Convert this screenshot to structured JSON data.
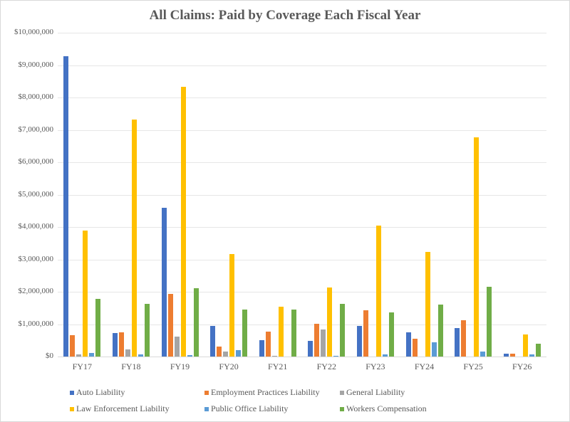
{
  "chart_data": {
    "type": "bar",
    "title": "All Claims: Paid by Coverage Each Fiscal Year",
    "xlabel": "",
    "ylabel": "",
    "ylim": [
      0,
      10000000
    ],
    "yticks": [
      0,
      1000000,
      2000000,
      3000000,
      4000000,
      5000000,
      6000000,
      7000000,
      8000000,
      9000000,
      10000000
    ],
    "ytick_labels": [
      "$0",
      "$1,000,000",
      "$2,000,000",
      "$3,000,000",
      "$4,000,000",
      "$5,000,000",
      "$6,000,000",
      "$7,000,000",
      "$8,000,000",
      "$9,000,000",
      "$10,000,000"
    ],
    "grid": true,
    "legend_position": "bottom",
    "categories": [
      "FY17",
      "FY18",
      "FY19",
      "FY20",
      "FY21",
      "FY22",
      "FY23",
      "FY24",
      "FY25",
      "FY26"
    ],
    "series": [
      {
        "name": "Auto Liability",
        "color": "#4472c4",
        "values": [
          9280000,
          720000,
          4600000,
          940000,
          510000,
          490000,
          950000,
          740000,
          890000,
          80000
        ]
      },
      {
        "name": "Employment Practices Liability",
        "color": "#ed7d31",
        "values": [
          650000,
          750000,
          1930000,
          300000,
          780000,
          1010000,
          1420000,
          560000,
          1120000,
          80000
        ]
      },
      {
        "name": "General Liability",
        "color": "#a5a5a5",
        "values": [
          60000,
          230000,
          610000,
          160000,
          10000,
          830000,
          0,
          0,
          0,
          0
        ]
      },
      {
        "name": "Law Enforcement Liability",
        "color": "#ffc000",
        "values": [
          3880000,
          7310000,
          8320000,
          3170000,
          1540000,
          2140000,
          4050000,
          3230000,
          6760000,
          690000
        ]
      },
      {
        "name": "Public Office Liability",
        "color": "#5b9bd5",
        "values": [
          120000,
          70000,
          40000,
          190000,
          0,
          10000,
          70000,
          440000,
          150000,
          70000
        ]
      },
      {
        "name": "Workers Compensation",
        "color": "#70ad47",
        "values": [
          1780000,
          1630000,
          2110000,
          1440000,
          1460000,
          1630000,
          1360000,
          1600000,
          2160000,
          400000
        ]
      }
    ]
  }
}
